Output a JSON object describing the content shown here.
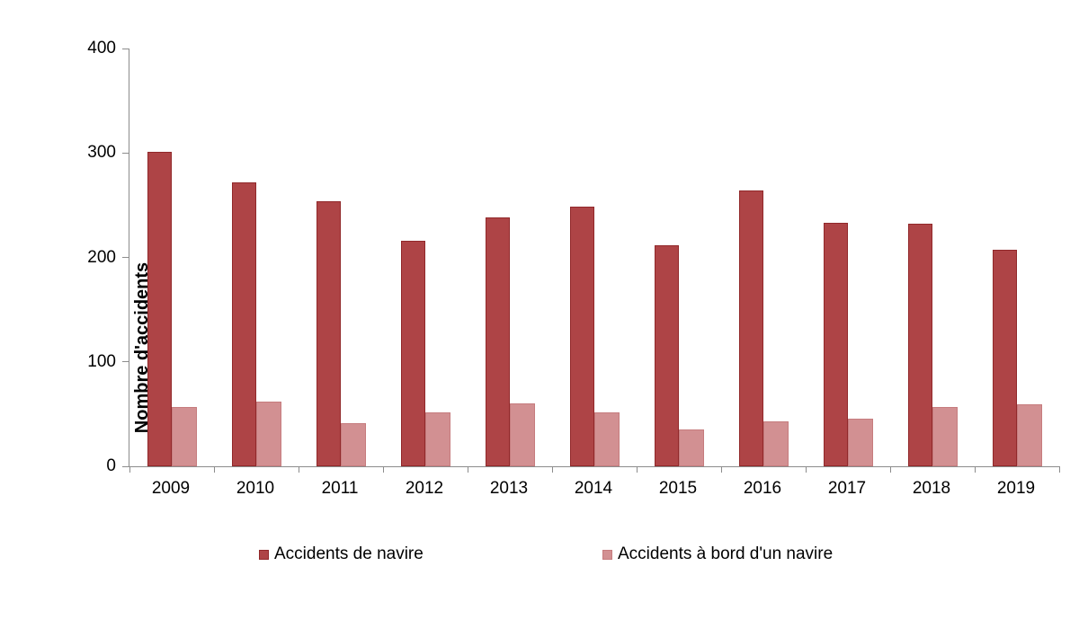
{
  "chart_data": {
    "type": "bar",
    "title": "",
    "xlabel": "",
    "ylabel": "Nombre d'accidents",
    "categories": [
      "2009",
      "2010",
      "2011",
      "2012",
      "2013",
      "2014",
      "2015",
      "2016",
      "2017",
      "2018",
      "2019"
    ],
    "series": [
      {
        "name": "Accidents de navire",
        "color": "#ae4446",
        "border_color": "#91282a",
        "values": [
          301,
          272,
          254,
          216,
          238,
          249,
          212,
          264,
          233,
          232,
          207
        ]
      },
      {
        "name": "Accidents à bord d'un navire",
        "color": "#d29092",
        "border_color": "#c67c7e",
        "values": [
          57,
          62,
          41,
          52,
          60,
          52,
          35,
          43,
          46,
          57,
          59
        ]
      }
    ],
    "ylim": [
      0,
      400
    ],
    "yticks": [
      0,
      100,
      200,
      300,
      400
    ],
    "grid": false,
    "legend_position": "bottom"
  },
  "style": {
    "axis_color": "#8c8c8c"
  }
}
